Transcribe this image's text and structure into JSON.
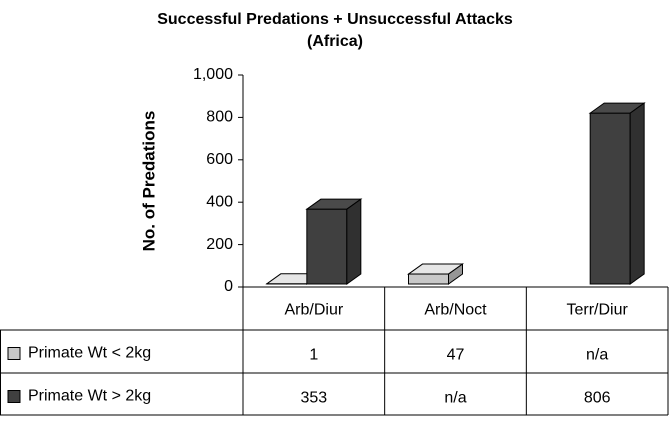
{
  "chart_data": {
    "type": "bar3d",
    "title": "Successful Predations + Unsuccessful Attacks",
    "subtitle": "(Africa)",
    "y_label": "No. of Predations",
    "categories": [
      "Arb/Diur",
      "Arb/Noct",
      "Terr/Diur"
    ],
    "series": [
      {
        "name": "Primate Wt < 2kg",
        "color": "#c8c8c8",
        "values": [
          1,
          47,
          null
        ],
        "value_labels": [
          "1",
          "47",
          "n/a"
        ]
      },
      {
        "name": "Primate Wt > 2kg",
        "color": "#404040",
        "values": [
          353,
          null,
          806
        ],
        "value_labels": [
          "353",
          "n/a",
          "806"
        ]
      }
    ],
    "ylim": [
      0,
      1000
    ],
    "yticks": [
      0,
      200,
      400,
      600,
      800,
      {
        "value": 1000,
        "label": "1,000"
      }
    ]
  }
}
